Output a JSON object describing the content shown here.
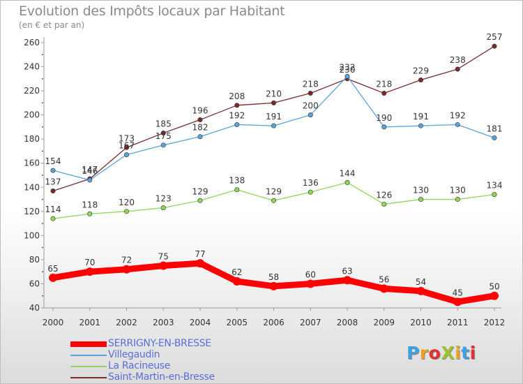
{
  "title": "Evolution des Impôts locaux par Habitant",
  "subtitle": "(en € et par an)",
  "logo": {
    "text": "ProXiti",
    "colors": [
      "#3fa0e0",
      "#f0a020",
      "#e03030",
      "#a0c030",
      "#f0a020",
      "#3fa0e0",
      "#e03030"
    ]
  },
  "chart_data": {
    "type": "line",
    "x": [
      "2000",
      "2001",
      "2002",
      "2003",
      "2004",
      "2005",
      "2006",
      "2007",
      "2008",
      "2009",
      "2010",
      "2011",
      "2012"
    ],
    "ylim": [
      40,
      260
    ],
    "yticks": [
      40,
      60,
      80,
      100,
      120,
      140,
      160,
      180,
      200,
      220,
      240,
      260
    ],
    "grid": false,
    "legend_position": "bottom-left",
    "series": [
      {
        "name": "SERRIGNY-EN-BRESSE",
        "color": "#ff0000",
        "values": [
          65,
          70,
          72,
          75,
          77,
          62,
          58,
          60,
          63,
          56,
          54,
          45,
          50
        ]
      },
      {
        "name": "Villegaudin",
        "color": "#5ba3d9",
        "values": [
          154,
          146,
          167,
          175,
          182,
          192,
          191,
          200,
          232,
          190,
          191,
          192,
          181
        ]
      },
      {
        "name": "La Racineuse",
        "color": "#8fd65a",
        "values": [
          114,
          118,
          120,
          123,
          129,
          138,
          129,
          136,
          144,
          126,
          130,
          130,
          134
        ]
      },
      {
        "name": "Saint-Martin-en-Bresse",
        "color": "#7a2a2a",
        "values": [
          137,
          147,
          173,
          185,
          196,
          208,
          210,
          218,
          230,
          218,
          229,
          238,
          257
        ]
      }
    ]
  }
}
